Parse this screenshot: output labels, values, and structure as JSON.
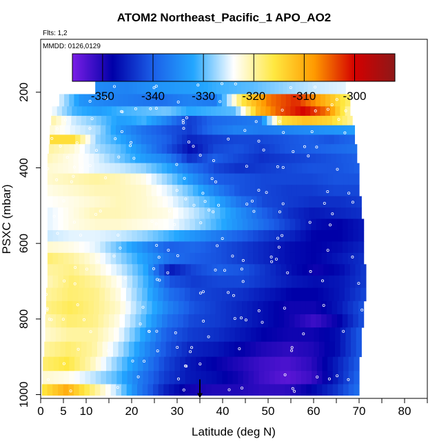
{
  "chart_data": {
    "type": "heatmap",
    "title": "ATOM2 Northeast_Pacific_1 APO_AO2",
    "annotations": [
      "Flts: 1,2",
      "MMDD: 0126,0129"
    ],
    "xlabel": "Latitude (deg N)",
    "ylabel": "PSXC (mbar)",
    "xlim": [
      0,
      85
    ],
    "ylim": [
      1010,
      60
    ],
    "x_ticks": [
      0,
      5,
      10,
      20,
      30,
      40,
      50,
      60,
      70,
      80
    ],
    "x_minor_ticks": [
      15,
      25,
      35,
      45,
      55,
      65,
      75,
      85
    ],
    "y_ticks": [
      200,
      400,
      600,
      800,
      1000
    ],
    "colorbar": {
      "vmin": -356,
      "vmax": -292,
      "ticks": [
        -350,
        -340,
        -330,
        -320,
        -310,
        -300
      ],
      "tick_labels": [
        "-350",
        "-340",
        "-330",
        "-320",
        "-310",
        "-300"
      ],
      "colors": [
        "#7a1ee6",
        "#0000a8",
        "#1b5fe8",
        "#23a6ff",
        "#ffffff",
        "#ffe840",
        "#ff9a00",
        "#d40000",
        "#8e1818"
      ]
    },
    "series": [
      {
        "p": 185,
        "lat": [
          12,
          67
        ],
        "values": [
          -335,
          -336,
          -334,
          -333,
          -331,
          -330,
          -328,
          -326,
          -325
        ]
      },
      {
        "p": 225,
        "lat": [
          3,
          68
        ],
        "values": [
          -323,
          -334,
          -336,
          -337,
          -338,
          -336,
          -337,
          -316,
          -306,
          -302,
          -310,
          -318
        ]
      },
      {
        "p": 250,
        "lat": [
          2.5,
          68
        ],
        "values": [
          -324,
          -331,
          -333,
          -331,
          -330,
          -329,
          -332,
          -331,
          -330,
          -311,
          -304,
          -300,
          -306,
          -321
        ]
      },
      {
        "p": 275,
        "lat": [
          2.3,
          68.5
        ],
        "values": [
          -320,
          -326,
          -329,
          -333,
          -331,
          -336,
          -343,
          -339,
          -338,
          -337,
          -315,
          -312,
          -314,
          -320
        ]
      },
      {
        "p": 300,
        "lat": [
          2,
          69
        ],
        "values": [
          -322,
          -325,
          -327,
          -334,
          -338,
          -341,
          -343,
          -338,
          -336,
          -337,
          -336,
          -335,
          -334,
          -333
        ]
      },
      {
        "p": 325,
        "lat": [
          2,
          69
        ],
        "values": [
          -315,
          -315,
          -328,
          -332,
          -337,
          -340,
          -345,
          -343,
          -342,
          -342,
          -341,
          -340,
          -341,
          -339
        ]
      },
      {
        "p": 350,
        "lat": [
          1.8,
          69.5
        ],
        "values": [
          -320,
          -322,
          -327,
          -330,
          -335,
          -341,
          -347,
          -342,
          -341,
          -343,
          -341,
          -340,
          -339,
          -338
        ]
      },
      {
        "p": 375,
        "lat": [
          1.5,
          69.5
        ],
        "values": [
          -321,
          -323,
          -325,
          -329,
          -333,
          -336,
          -344,
          -340,
          -342,
          -344,
          -343,
          -342,
          -341,
          -340
        ]
      },
      {
        "p": 400,
        "lat": [
          1.5,
          70
        ],
        "values": [
          -322,
          -323,
          -325,
          -326,
          -328,
          -332,
          -338,
          -342,
          -344,
          -343,
          -342,
          -341,
          -341,
          -340
        ]
      },
      {
        "p": 430,
        "lat": [
          1.5,
          70
        ],
        "values": [
          -322,
          -321,
          -320,
          -321,
          -323,
          -328,
          -334,
          -340,
          -341,
          -342,
          -342,
          -342,
          -341,
          -341
        ]
      },
      {
        "p": 460,
        "lat": [
          1.5,
          70
        ],
        "values": [
          -323,
          -322,
          -321,
          -321,
          -322,
          -325,
          -330,
          -336,
          -341,
          -342,
          -343,
          -343,
          -342,
          -342
        ]
      },
      {
        "p": 490,
        "lat": [
          1.5,
          70.5
        ],
        "values": [
          -324,
          -323,
          -322,
          -321,
          -322,
          -324,
          -328,
          -332,
          -338,
          -342,
          -343,
          -344,
          -344,
          -343
        ]
      },
      {
        "p": 520,
        "lat": [
          1.5,
          70.5
        ],
        "values": [
          -325,
          -323,
          -321,
          -321,
          -322,
          -323,
          -326,
          -330,
          -335,
          -340,
          -344,
          -346,
          -345,
          -344
        ]
      },
      {
        "p": 550,
        "lat": [
          1.5,
          71
        ],
        "values": [
          -325,
          -323,
          -322,
          -322,
          -323,
          -324,
          -327,
          -331,
          -335,
          -339,
          -343,
          -347,
          -348,
          -346
        ]
      },
      {
        "p": 580,
        "lat": [
          1.5,
          71
        ],
        "values": [
          -326,
          -325,
          -325,
          -326,
          -328,
          -331,
          -334,
          -337,
          -340,
          -343,
          -345,
          -348,
          -348,
          -346
        ]
      },
      {
        "p": 610,
        "lat": [
          1.5,
          71
        ],
        "values": [
          -322,
          -323,
          -325,
          -330,
          -335,
          -340,
          -339,
          -341,
          -343,
          -345,
          -347,
          -348,
          -347,
          -345
        ]
      },
      {
        "p": 640,
        "lat": [
          1.5,
          71
        ],
        "values": [
          -318,
          -320,
          -323,
          -328,
          -333,
          -338,
          -340,
          -341,
          -343,
          -345,
          -347,
          -348,
          -346,
          -344
        ]
      },
      {
        "p": 670,
        "lat": [
          1.5,
          71.5
        ],
        "values": [
          -320,
          -319,
          -322,
          -326,
          -332,
          -346,
          -342,
          -340,
          -341,
          -344,
          -347,
          -349,
          -347,
          -343
        ]
      },
      {
        "p": 700,
        "lat": [
          1.5,
          71.5
        ],
        "values": [
          -321,
          -318,
          -320,
          -324,
          -331,
          -341,
          -343,
          -342,
          -342,
          -344,
          -346,
          -347,
          -346,
          -343
        ]
      },
      {
        "p": 735,
        "lat": [
          1.2,
          71.5
        ],
        "values": [
          -320,
          -318,
          -319,
          -323,
          -330,
          -338,
          -342,
          -343,
          -344,
          -346,
          -348,
          -348,
          -346,
          -342
        ]
      },
      {
        "p": 770,
        "lat": [
          1.2,
          71
        ],
        "values": [
          -319,
          -317,
          -319,
          -322,
          -329,
          -336,
          -341,
          -343,
          -345,
          -347,
          -349,
          -349,
          -346,
          -341
        ]
      },
      {
        "p": 805,
        "lat": [
          1,
          71
        ],
        "values": [
          -321,
          -318,
          -319,
          -323,
          -330,
          -338,
          -342,
          -343,
          -345,
          -347,
          -349,
          -352,
          -348,
          -341
        ]
      },
      {
        "p": 840,
        "lat": [
          1,
          70.5
        ],
        "values": [
          -322,
          -320,
          -320,
          -324,
          -332,
          -340,
          -343,
          -344,
          -346,
          -348,
          -349,
          -349,
          -347,
          -340
        ]
      },
      {
        "p": 880,
        "lat": [
          0.8,
          70.5
        ],
        "values": [
          -320,
          -318,
          -320,
          -326,
          -334,
          -341,
          -345,
          -346,
          -348,
          -350,
          -351,
          -350,
          -347,
          -340
        ]
      },
      {
        "p": 920,
        "lat": [
          0.5,
          70
        ],
        "values": [
          -318,
          -316,
          -321,
          -328,
          -335,
          -342,
          -346,
          -348,
          -350,
          -352,
          -353,
          -351,
          -346,
          -340
        ]
      },
      {
        "p": 955,
        "lat": [
          0.5,
          70
        ],
        "values": [
          -322,
          -323,
          -326,
          -330,
          -337,
          -343,
          -346,
          -347,
          -349,
          -352,
          -354,
          -352,
          -346,
          -339
        ]
      },
      {
        "p": 990,
        "lat": [
          0.3,
          70
        ],
        "values": [
          -316,
          -310,
          -318,
          -326,
          -337,
          -345,
          -349,
          -350,
          -350,
          -351,
          -351,
          -348,
          -344,
          -338
        ]
      }
    ],
    "marker": {
      "lat": 35,
      "p": 1000
    }
  }
}
